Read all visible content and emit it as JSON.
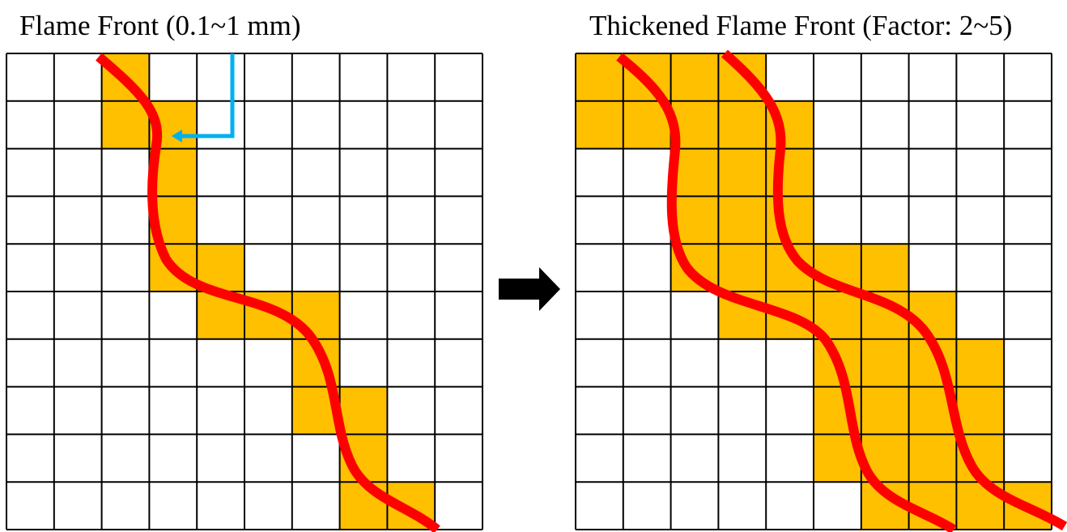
{
  "left_panel": {
    "title": "Flame Front (0.1~1 mm)",
    "grid": {
      "rows": 10,
      "cols": 10
    },
    "filled_cells": [
      [
        0,
        2
      ],
      [
        1,
        2
      ],
      [
        1,
        3
      ],
      [
        2,
        3
      ],
      [
        3,
        3
      ],
      [
        4,
        3
      ],
      [
        4,
        4
      ],
      [
        5,
        4
      ],
      [
        5,
        5
      ],
      [
        5,
        6
      ],
      [
        6,
        6
      ],
      [
        7,
        6
      ],
      [
        7,
        7
      ],
      [
        8,
        7
      ],
      [
        9,
        7
      ],
      [
        9,
        8
      ]
    ],
    "flame_fronts": 1
  },
  "right_panel": {
    "title": "Thickened Flame Front (Factor: 2~5)",
    "grid": {
      "rows": 10,
      "cols": 10
    },
    "filled_cells": [
      [
        0,
        0
      ],
      [
        0,
        1
      ],
      [
        0,
        2
      ],
      [
        0,
        3
      ],
      [
        1,
        0
      ],
      [
        1,
        1
      ],
      [
        1,
        2
      ],
      [
        1,
        3
      ],
      [
        1,
        4
      ],
      [
        2,
        2
      ],
      [
        2,
        3
      ],
      [
        2,
        4
      ],
      [
        3,
        2
      ],
      [
        3,
        3
      ],
      [
        3,
        4
      ],
      [
        4,
        2
      ],
      [
        4,
        3
      ],
      [
        4,
        4
      ],
      [
        4,
        5
      ],
      [
        4,
        6
      ],
      [
        5,
        3
      ],
      [
        5,
        4
      ],
      [
        5,
        5
      ],
      [
        5,
        6
      ],
      [
        5,
        7
      ],
      [
        6,
        5
      ],
      [
        6,
        6
      ],
      [
        6,
        7
      ],
      [
        6,
        8
      ],
      [
        7,
        5
      ],
      [
        7,
        6
      ],
      [
        7,
        7
      ],
      [
        7,
        8
      ],
      [
        8,
        5
      ],
      [
        8,
        6
      ],
      [
        8,
        7
      ],
      [
        8,
        8
      ],
      [
        9,
        6
      ],
      [
        9,
        7
      ],
      [
        9,
        8
      ],
      [
        9,
        9
      ]
    ],
    "flame_fronts": 2
  },
  "colors": {
    "cell_fill": "#FFC000",
    "grid_line": "#000000",
    "flame_curve": "#FF0000",
    "cell_size_arrow": "#00B0F0",
    "transition_arrow": "#000000"
  }
}
